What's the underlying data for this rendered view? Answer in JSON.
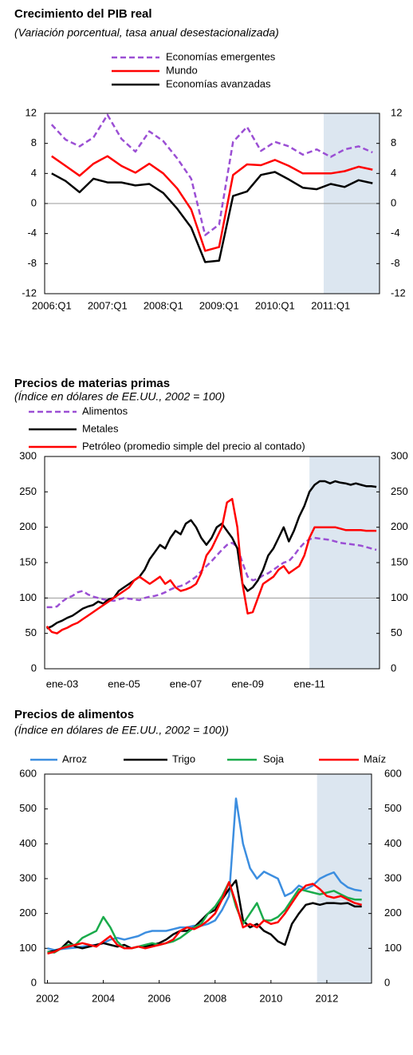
{
  "chart_data": [
    {
      "type": "line",
      "title": "Crecimiento del PIB real",
      "subtitle": "(Variación porcentual, tasa anual desestacionalizada)",
      "categories": [
        "2006:Q1",
        null,
        null,
        null,
        "2007:Q1",
        null,
        null,
        null,
        "2008:Q1",
        null,
        null,
        null,
        "2009:Q1",
        null,
        null,
        null,
        "2010:Q1",
        null,
        null,
        null,
        "2011:Q1",
        null,
        null,
        null
      ],
      "series": [
        {
          "name": "Economías emergentes",
          "color": "#9b4fd4",
          "dash": true,
          "values": [
            10.5,
            8.5,
            7.6,
            8.8,
            11.8,
            8.6,
            6.9,
            9.6,
            8.3,
            6.0,
            3.3,
            -4.2,
            -2.8,
            8.2,
            10.2,
            7.0,
            8.2,
            7.6,
            6.5,
            7.2,
            6.2,
            7.2,
            7.6,
            6.8
          ]
        },
        {
          "name": "Mundo",
          "color": "#ff0000",
          "dash": false,
          "values": [
            6.3,
            5.0,
            3.7,
            5.3,
            6.3,
            5.0,
            4.1,
            5.3,
            4.0,
            2.0,
            -0.8,
            -6.3,
            -5.8,
            3.8,
            5.2,
            5.1,
            5.8,
            5.0,
            4.0,
            4.0,
            4.0,
            4.3,
            4.9,
            4.5
          ]
        },
        {
          "name": "Economías avanzadas",
          "color": "#000000",
          "dash": false,
          "values": [
            4.0,
            3.0,
            1.5,
            3.3,
            2.8,
            2.8,
            2.4,
            2.6,
            1.4,
            -0.7,
            -3.2,
            -7.8,
            -7.6,
            1.0,
            1.6,
            3.8,
            4.2,
            3.2,
            2.1,
            1.9,
            2.6,
            2.2,
            3.1,
            2.7
          ]
        }
      ],
      "ylim": [
        -12,
        12
      ],
      "yticks": [
        -12,
        -8,
        -4,
        0,
        4,
        8,
        12
      ],
      "hline": 0,
      "shaded_from": "2011:Q1",
      "shade_color": "#dce6f0"
    },
    {
      "type": "line",
      "title": "Precios de materias primas",
      "subtitle": "(Índice en dólares de EE.UU., 2002 = 100)",
      "categories": [
        null,
        null,
        null,
        "ene-03",
        null,
        null,
        null,
        null,
        null,
        null,
        null,
        null,
        null,
        null,
        null,
        "ene-05",
        null,
        null,
        null,
        null,
        null,
        null,
        null,
        null,
        null,
        null,
        null,
        "ene-07",
        null,
        null,
        null,
        null,
        null,
        null,
        null,
        null,
        null,
        null,
        null,
        "ene-09",
        null,
        null,
        null,
        null,
        null,
        null,
        null,
        null,
        null,
        null,
        null,
        "ene-11",
        null,
        null,
        null,
        null,
        null,
        null,
        null,
        null,
        null,
        null,
        null,
        null,
        null
      ],
      "series": [
        {
          "name": "Alimentos",
          "color": "#9b4fd4",
          "dash": true,
          "values": [
            87,
            87,
            88,
            95,
            100,
            103,
            108,
            110,
            105,
            102,
            100,
            98,
            97,
            96,
            98,
            100,
            99,
            98,
            97,
            100,
            102,
            103,
            105,
            108,
            112,
            115,
            117,
            120,
            125,
            130,
            138,
            145,
            152,
            160,
            168,
            175,
            178,
            172,
            150,
            130,
            125,
            127,
            132,
            135,
            140,
            145,
            150,
            152,
            160,
            170,
            178,
            183,
            185,
            184,
            183,
            182,
            180,
            178,
            177,
            176,
            175,
            174,
            172,
            170,
            168
          ]
        },
        {
          "name": "Metales",
          "color": "#000000",
          "dash": false,
          "values": [
            57,
            60,
            65,
            68,
            72,
            75,
            80,
            85,
            88,
            90,
            95,
            92,
            98,
            100,
            110,
            115,
            120,
            125,
            130,
            140,
            155,
            165,
            175,
            170,
            185,
            195,
            190,
            205,
            210,
            200,
            185,
            175,
            185,
            200,
            205,
            195,
            185,
            170,
            120,
            110,
            115,
            125,
            140,
            160,
            170,
            185,
            200,
            180,
            195,
            215,
            230,
            250,
            260,
            265,
            265,
            262,
            265,
            263,
            262,
            260,
            262,
            260,
            258,
            258,
            257
          ]
        },
        {
          "name": "Petróleo (promedio simple del precio al contado)",
          "color": "#ff0000",
          "dash": false,
          "values": [
            60,
            52,
            50,
            55,
            58,
            62,
            65,
            70,
            75,
            80,
            85,
            90,
            95,
            100,
            105,
            110,
            115,
            125,
            130,
            125,
            120,
            125,
            130,
            120,
            125,
            115,
            110,
            112,
            115,
            120,
            135,
            160,
            170,
            185,
            200,
            235,
            240,
            200,
            120,
            78,
            80,
            100,
            120,
            125,
            130,
            140,
            145,
            135,
            140,
            145,
            160,
            185,
            200,
            200,
            200,
            200,
            200,
            198,
            196,
            196,
            196,
            196,
            195,
            195,
            195
          ]
        }
      ],
      "ylim": [
        0,
        300
      ],
      "yticks": [
        0,
        50,
        100,
        150,
        200,
        250,
        300
      ],
      "hline": 100,
      "shaded_from": "ene-11",
      "shade_color": "#dce6f0"
    },
    {
      "type": "line",
      "title": "Precios de alimentos",
      "subtitle": "(Índice en dólares de EE.UU., 2002 = 100))",
      "x": [
        2002,
        2002.25,
        2002.5,
        2002.75,
        2003,
        2003.25,
        2003.5,
        2003.75,
        2004,
        2004.25,
        2004.5,
        2004.75,
        2005,
        2005.25,
        2005.5,
        2005.75,
        2006,
        2006.25,
        2006.5,
        2006.75,
        2007,
        2007.25,
        2007.5,
        2007.75,
        2008,
        2008.25,
        2008.5,
        2008.75,
        2009,
        2009.25,
        2009.5,
        2009.75,
        2010,
        2010.25,
        2010.5,
        2010.75,
        2011,
        2011.25,
        2011.5,
        2011.75,
        2012,
        2012.25,
        2012.5,
        2012.75,
        2013,
        2013.25
      ],
      "series": [
        {
          "name": "Arroz",
          "color": "#3c8ee0",
          "dash": false,
          "values": [
            100,
            95,
            98,
            100,
            102,
            105,
            108,
            110,
            115,
            125,
            130,
            125,
            130,
            135,
            145,
            150,
            150,
            150,
            155,
            160,
            160,
            165,
            165,
            170,
            180,
            210,
            250,
            530,
            400,
            330,
            300,
            320,
            310,
            300,
            250,
            260,
            280,
            270,
            280,
            300,
            310,
            318,
            290,
            275,
            268,
            265
          ]
        },
        {
          "name": "Trigo",
          "color": "#000000",
          "dash": false,
          "values": [
            90,
            92,
            100,
            120,
            105,
            100,
            105,
            110,
            115,
            110,
            105,
            110,
            100,
            105,
            105,
            110,
            115,
            125,
            140,
            150,
            150,
            160,
            180,
            200,
            210,
            240,
            270,
            295,
            180,
            160,
            170,
            150,
            140,
            120,
            110,
            170,
            200,
            225,
            230,
            225,
            230,
            230,
            228,
            230,
            220,
            220
          ]
        },
        {
          "name": "Soja",
          "color": "#1aab4b",
          "dash": false,
          "values": [
            90,
            88,
            100,
            110,
            110,
            130,
            140,
            150,
            190,
            160,
            120,
            100,
            100,
            105,
            110,
            115,
            110,
            115,
            120,
            130,
            145,
            160,
            170,
            200,
            220,
            250,
            290,
            220,
            170,
            200,
            230,
            180,
            180,
            190,
            210,
            240,
            270,
            265,
            260,
            255,
            260,
            265,
            255,
            245,
            240,
            240
          ]
        },
        {
          "name": "Maíz",
          "color": "#ff0000",
          "dash": false,
          "values": [
            85,
            90,
            100,
            105,
            110,
            115,
            110,
            105,
            120,
            135,
            110,
            100,
            100,
            105,
            100,
            105,
            110,
            115,
            125,
            150,
            160,
            155,
            165,
            180,
            200,
            240,
            290,
            230,
            160,
            170,
            160,
            180,
            170,
            175,
            200,
            230,
            260,
            280,
            285,
            270,
            250,
            245,
            250,
            240,
            230,
            225
          ]
        }
      ],
      "xlim": [
        2001.9,
        2013.6
      ],
      "xticks": [
        2002,
        2004,
        2006,
        2008,
        2010,
        2012
      ],
      "ylim": [
        0,
        600
      ],
      "yticks": [
        0,
        100,
        200,
        300,
        400,
        500,
        600
      ],
      "shaded_from": 2011.65,
      "shade_color": "#dce6f0"
    }
  ]
}
